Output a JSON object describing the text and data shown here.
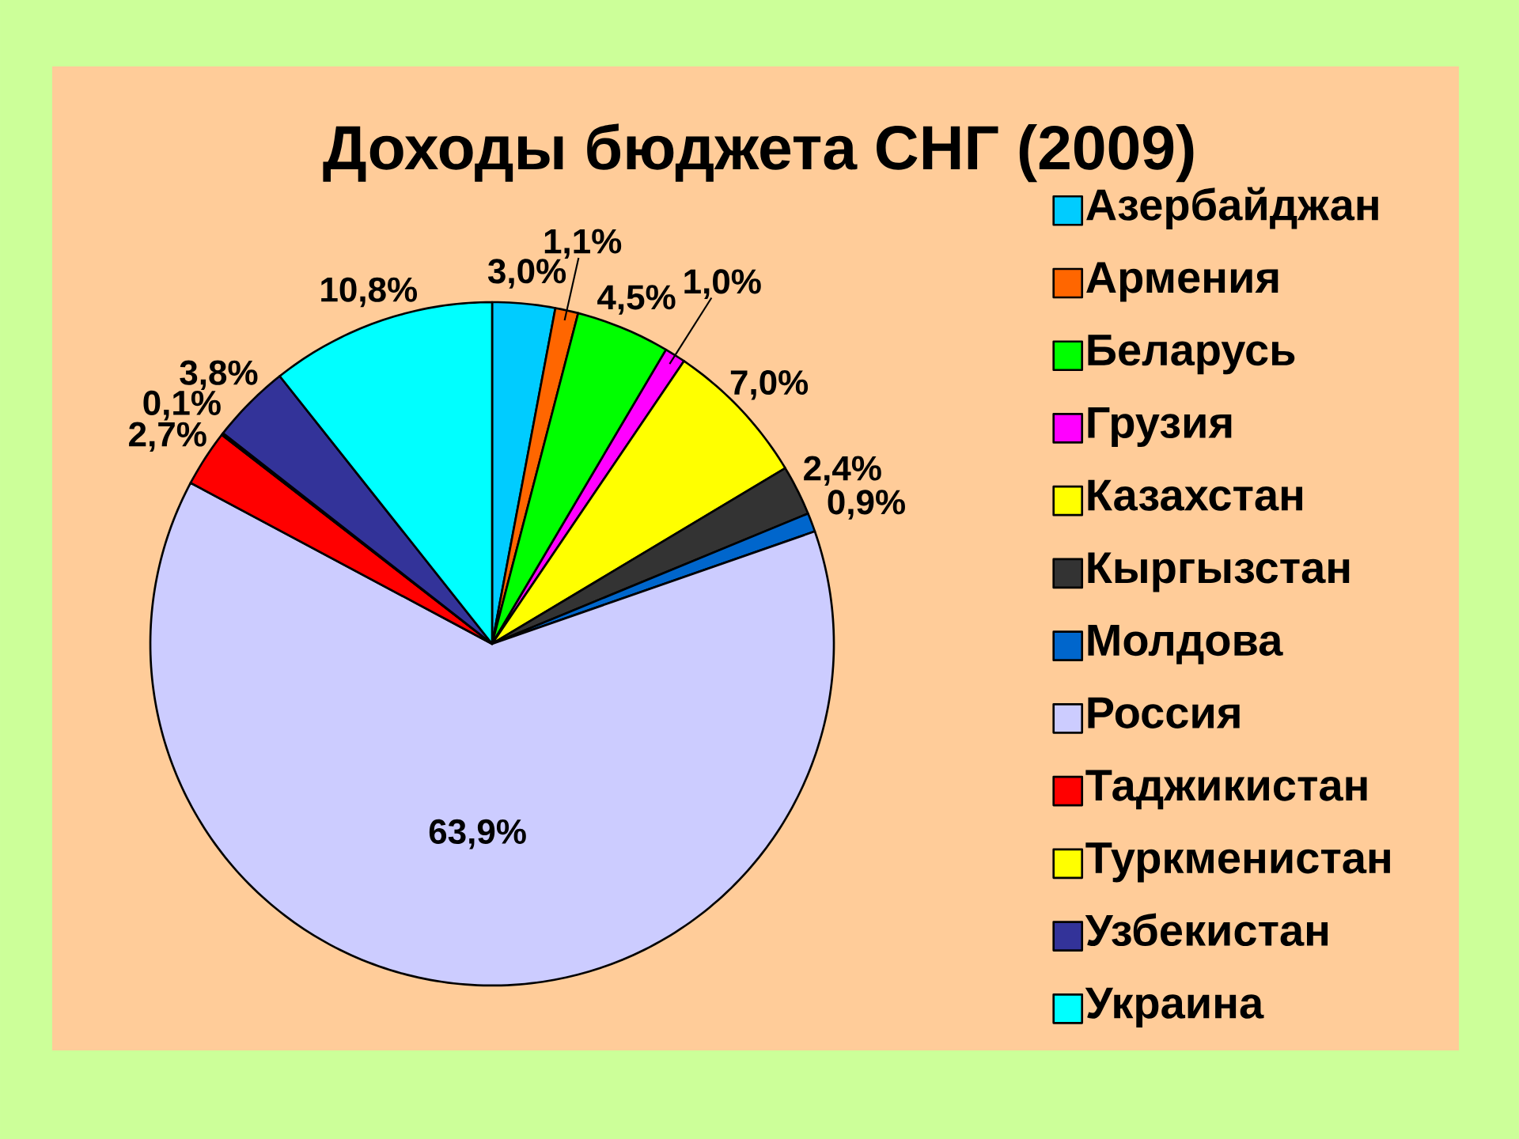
{
  "chart_data": {
    "type": "pie",
    "title": "Доходы бюджета СНГ (2009)",
    "categories": [
      "Азербайджан",
      "Армения",
      "Беларусь",
      "Грузия",
      "Казахстан",
      "Кыргызстан",
      "Молдова",
      "Россия",
      "Таджикистан",
      "Туркменистан",
      "Узбекистан",
      "Украина"
    ],
    "values": [
      3.0,
      1.1,
      4.5,
      1.0,
      7.0,
      2.4,
      0.9,
      63.9,
      2.7,
      0.1,
      3.8,
      10.8
    ],
    "value_labels": [
      "3,0%",
      "1,1%",
      "4,5%",
      "1,0%",
      "7,0%",
      "2,4%",
      "0,9%",
      "63,9%",
      "2,7%",
      "0,1%",
      "3,8%",
      "10,8%"
    ],
    "colors": [
      "#00ccff",
      "#ff6600",
      "#00ff00",
      "#ff00ff",
      "#ffff00",
      "#333333",
      "#0066cc",
      "#ccccff",
      "#ff0000",
      "#ffff00",
      "#333399",
      "#00ffff"
    ],
    "legend": "right"
  }
}
